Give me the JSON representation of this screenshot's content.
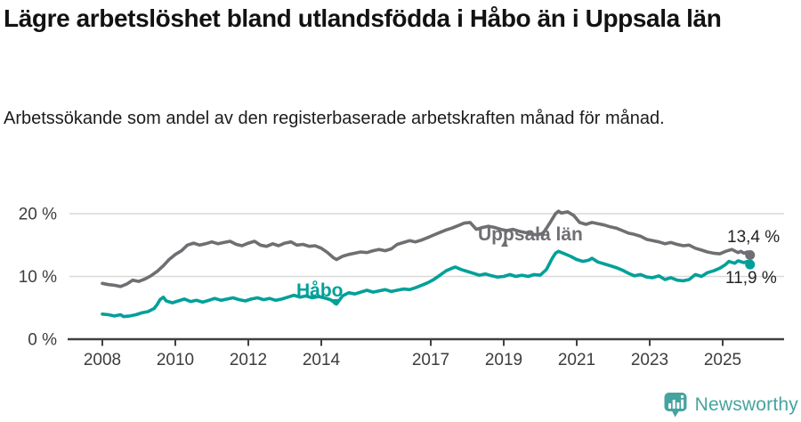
{
  "chart_data": {
    "type": "line",
    "title": "Lägre arbetslöshet bland utlandsfödda i Håbo än i Uppsala län",
    "subtitle": "Arbetssökande som andel av den registerbaserade arbetskraften månad för månad.",
    "x_unit": "year",
    "xlim": [
      2007.1,
      2026.5
    ],
    "ylim": [
      0,
      22
    ],
    "grid": "horizontal-only",
    "legend": "inline-labels",
    "number_format": "decimal-comma",
    "x_ticks": [
      2008,
      2010,
      2012,
      2014,
      2017,
      2019,
      2021,
      2023,
      2025
    ],
    "y_ticks": [
      {
        "value": 0,
        "label": "0 %"
      },
      {
        "value": 10,
        "label": "10 %"
      },
      {
        "value": 20,
        "label": "20 %"
      }
    ],
    "series": [
      {
        "name": "Uppsala län",
        "color": "#6f6f73",
        "end_label": "13,4 %",
        "end_value": 13.4,
        "points": [
          [
            2008.0,
            8.9
          ],
          [
            2008.17,
            8.7
          ],
          [
            2008.33,
            8.6
          ],
          [
            2008.5,
            8.4
          ],
          [
            2008.67,
            8.8
          ],
          [
            2008.83,
            9.4
          ],
          [
            2009.0,
            9.2
          ],
          [
            2009.17,
            9.6
          ],
          [
            2009.33,
            10.1
          ],
          [
            2009.5,
            10.8
          ],
          [
            2009.67,
            11.7
          ],
          [
            2009.83,
            12.7
          ],
          [
            2010.0,
            13.5
          ],
          [
            2010.17,
            14.1
          ],
          [
            2010.33,
            15.0
          ],
          [
            2010.5,
            15.3
          ],
          [
            2010.67,
            15.0
          ],
          [
            2010.83,
            15.2
          ],
          [
            2011.0,
            15.5
          ],
          [
            2011.17,
            15.2
          ],
          [
            2011.33,
            15.4
          ],
          [
            2011.5,
            15.6
          ],
          [
            2011.67,
            15.1
          ],
          [
            2011.83,
            14.9
          ],
          [
            2012.0,
            15.3
          ],
          [
            2012.17,
            15.6
          ],
          [
            2012.33,
            15.0
          ],
          [
            2012.5,
            14.8
          ],
          [
            2012.67,
            15.2
          ],
          [
            2012.83,
            14.9
          ],
          [
            2013.0,
            15.3
          ],
          [
            2013.17,
            15.5
          ],
          [
            2013.33,
            15.0
          ],
          [
            2013.5,
            15.1
          ],
          [
            2013.67,
            14.8
          ],
          [
            2013.83,
            14.9
          ],
          [
            2014.0,
            14.5
          ],
          [
            2014.17,
            13.8
          ],
          [
            2014.33,
            13.0
          ],
          [
            2014.42,
            12.7
          ],
          [
            2014.58,
            13.2
          ],
          [
            2014.75,
            13.5
          ],
          [
            2014.92,
            13.7
          ],
          [
            2015.08,
            13.9
          ],
          [
            2015.25,
            13.8
          ],
          [
            2015.42,
            14.1
          ],
          [
            2015.58,
            14.3
          ],
          [
            2015.75,
            14.1
          ],
          [
            2015.92,
            14.4
          ],
          [
            2016.08,
            15.1
          ],
          [
            2016.25,
            15.4
          ],
          [
            2016.42,
            15.7
          ],
          [
            2016.58,
            15.5
          ],
          [
            2016.75,
            15.8
          ],
          [
            2016.92,
            16.2
          ],
          [
            2017.08,
            16.6
          ],
          [
            2017.25,
            17.0
          ],
          [
            2017.42,
            17.4
          ],
          [
            2017.58,
            17.7
          ],
          [
            2017.75,
            18.1
          ],
          [
            2017.92,
            18.5
          ],
          [
            2018.08,
            18.6
          ],
          [
            2018.17,
            18.0
          ],
          [
            2018.25,
            17.5
          ],
          [
            2018.42,
            17.8
          ],
          [
            2018.58,
            18.0
          ],
          [
            2018.75,
            17.8
          ],
          [
            2018.92,
            17.5
          ],
          [
            2019.08,
            17.3
          ],
          [
            2019.25,
            17.5
          ],
          [
            2019.42,
            17.2
          ],
          [
            2019.58,
            17.0
          ],
          [
            2019.75,
            16.8
          ],
          [
            2019.92,
            16.6
          ],
          [
            2020.08,
            16.9
          ],
          [
            2020.25,
            18.4
          ],
          [
            2020.42,
            20.0
          ],
          [
            2020.5,
            20.4
          ],
          [
            2020.58,
            20.1
          ],
          [
            2020.75,
            20.3
          ],
          [
            2020.92,
            19.7
          ],
          [
            2021.08,
            18.6
          ],
          [
            2021.25,
            18.3
          ],
          [
            2021.42,
            18.6
          ],
          [
            2021.58,
            18.4
          ],
          [
            2021.75,
            18.2
          ],
          [
            2021.92,
            17.9
          ],
          [
            2022.08,
            17.7
          ],
          [
            2022.25,
            17.3
          ],
          [
            2022.42,
            16.9
          ],
          [
            2022.58,
            16.7
          ],
          [
            2022.75,
            16.4
          ],
          [
            2022.92,
            15.9
          ],
          [
            2023.08,
            15.7
          ],
          [
            2023.25,
            15.5
          ],
          [
            2023.42,
            15.2
          ],
          [
            2023.58,
            15.4
          ],
          [
            2023.75,
            15.1
          ],
          [
            2023.92,
            14.9
          ],
          [
            2024.08,
            15.0
          ],
          [
            2024.25,
            14.5
          ],
          [
            2024.42,
            14.2
          ],
          [
            2024.58,
            13.9
          ],
          [
            2024.75,
            13.7
          ],
          [
            2024.92,
            13.6
          ],
          [
            2025.08,
            14.0
          ],
          [
            2025.25,
            14.3
          ],
          [
            2025.42,
            13.8
          ],
          [
            2025.5,
            14.0
          ],
          [
            2025.58,
            13.7
          ],
          [
            2025.67,
            13.9
          ],
          [
            2025.75,
            13.4
          ]
        ]
      },
      {
        "name": "Håbo",
        "color": "#00a099",
        "end_label": "11,9 %",
        "end_value": 11.9,
        "points": [
          [
            2008.0,
            4.0
          ],
          [
            2008.17,
            3.9
          ],
          [
            2008.33,
            3.7
          ],
          [
            2008.5,
            3.9
          ],
          [
            2008.58,
            3.6
          ],
          [
            2008.75,
            3.7
          ],
          [
            2008.92,
            3.9
          ],
          [
            2009.08,
            4.2
          ],
          [
            2009.25,
            4.4
          ],
          [
            2009.42,
            4.9
          ],
          [
            2009.5,
            5.5
          ],
          [
            2009.58,
            6.3
          ],
          [
            2009.67,
            6.7
          ],
          [
            2009.75,
            6.1
          ],
          [
            2009.92,
            5.8
          ],
          [
            2010.08,
            6.1
          ],
          [
            2010.25,
            6.4
          ],
          [
            2010.42,
            6.0
          ],
          [
            2010.58,
            6.2
          ],
          [
            2010.75,
            5.9
          ],
          [
            2010.92,
            6.2
          ],
          [
            2011.08,
            6.5
          ],
          [
            2011.25,
            6.2
          ],
          [
            2011.42,
            6.4
          ],
          [
            2011.58,
            6.6
          ],
          [
            2011.75,
            6.3
          ],
          [
            2011.92,
            6.1
          ],
          [
            2012.08,
            6.4
          ],
          [
            2012.25,
            6.6
          ],
          [
            2012.42,
            6.3
          ],
          [
            2012.58,
            6.5
          ],
          [
            2012.75,
            6.2
          ],
          [
            2012.92,
            6.4
          ],
          [
            2013.08,
            6.7
          ],
          [
            2013.25,
            7.0
          ],
          [
            2013.42,
            6.7
          ],
          [
            2013.58,
            6.9
          ],
          [
            2013.75,
            6.6
          ],
          [
            2013.92,
            6.8
          ],
          [
            2014.08,
            6.6
          ],
          [
            2014.25,
            6.3
          ],
          [
            2014.42,
            5.6
          ],
          [
            2014.58,
            6.9
          ],
          [
            2014.75,
            7.4
          ],
          [
            2014.92,
            7.2
          ],
          [
            2015.08,
            7.5
          ],
          [
            2015.25,
            7.8
          ],
          [
            2015.42,
            7.5
          ],
          [
            2015.58,
            7.7
          ],
          [
            2015.75,
            7.9
          ],
          [
            2015.92,
            7.6
          ],
          [
            2016.08,
            7.8
          ],
          [
            2016.25,
            8.0
          ],
          [
            2016.42,
            7.9
          ],
          [
            2016.58,
            8.2
          ],
          [
            2016.75,
            8.6
          ],
          [
            2016.92,
            9.0
          ],
          [
            2017.08,
            9.5
          ],
          [
            2017.25,
            10.2
          ],
          [
            2017.42,
            10.9
          ],
          [
            2017.58,
            11.3
          ],
          [
            2017.67,
            11.5
          ],
          [
            2017.83,
            11.1
          ],
          [
            2018.0,
            10.8
          ],
          [
            2018.17,
            10.5
          ],
          [
            2018.33,
            10.2
          ],
          [
            2018.5,
            10.4
          ],
          [
            2018.67,
            10.1
          ],
          [
            2018.83,
            9.9
          ],
          [
            2019.0,
            10.0
          ],
          [
            2019.17,
            10.3
          ],
          [
            2019.33,
            10.0
          ],
          [
            2019.5,
            10.2
          ],
          [
            2019.67,
            10.0
          ],
          [
            2019.83,
            10.3
          ],
          [
            2020.0,
            10.2
          ],
          [
            2020.17,
            11.1
          ],
          [
            2020.33,
            12.9
          ],
          [
            2020.42,
            13.7
          ],
          [
            2020.5,
            14.0
          ],
          [
            2020.67,
            13.6
          ],
          [
            2020.83,
            13.2
          ],
          [
            2021.0,
            12.7
          ],
          [
            2021.17,
            12.4
          ],
          [
            2021.33,
            12.6
          ],
          [
            2021.42,
            12.9
          ],
          [
            2021.58,
            12.3
          ],
          [
            2021.75,
            12.0
          ],
          [
            2021.92,
            11.7
          ],
          [
            2022.08,
            11.4
          ],
          [
            2022.25,
            11.0
          ],
          [
            2022.42,
            10.5
          ],
          [
            2022.58,
            10.1
          ],
          [
            2022.75,
            10.3
          ],
          [
            2022.92,
            9.9
          ],
          [
            2023.08,
            9.8
          ],
          [
            2023.25,
            10.1
          ],
          [
            2023.42,
            9.5
          ],
          [
            2023.58,
            9.8
          ],
          [
            2023.75,
            9.4
          ],
          [
            2023.92,
            9.3
          ],
          [
            2024.08,
            9.5
          ],
          [
            2024.25,
            10.3
          ],
          [
            2024.42,
            10.0
          ],
          [
            2024.58,
            10.6
          ],
          [
            2024.75,
            10.9
          ],
          [
            2024.92,
            11.3
          ],
          [
            2025.08,
            11.9
          ],
          [
            2025.17,
            12.4
          ],
          [
            2025.33,
            12.1
          ],
          [
            2025.42,
            12.5
          ],
          [
            2025.58,
            12.2
          ],
          [
            2025.67,
            12.4
          ],
          [
            2025.75,
            11.9
          ]
        ]
      }
    ],
    "colors": {
      "habo_line": "#00a099",
      "uppsala_line": "#6f6f73",
      "gridline": "#d9d9d9",
      "axis": "#404040",
      "tick_text": "#3d3d3d"
    }
  },
  "footer": {
    "brand": "Newsworthy",
    "logo_icon": "bar-chart-speech-bubble-icon",
    "brand_color": "#46a49e"
  }
}
